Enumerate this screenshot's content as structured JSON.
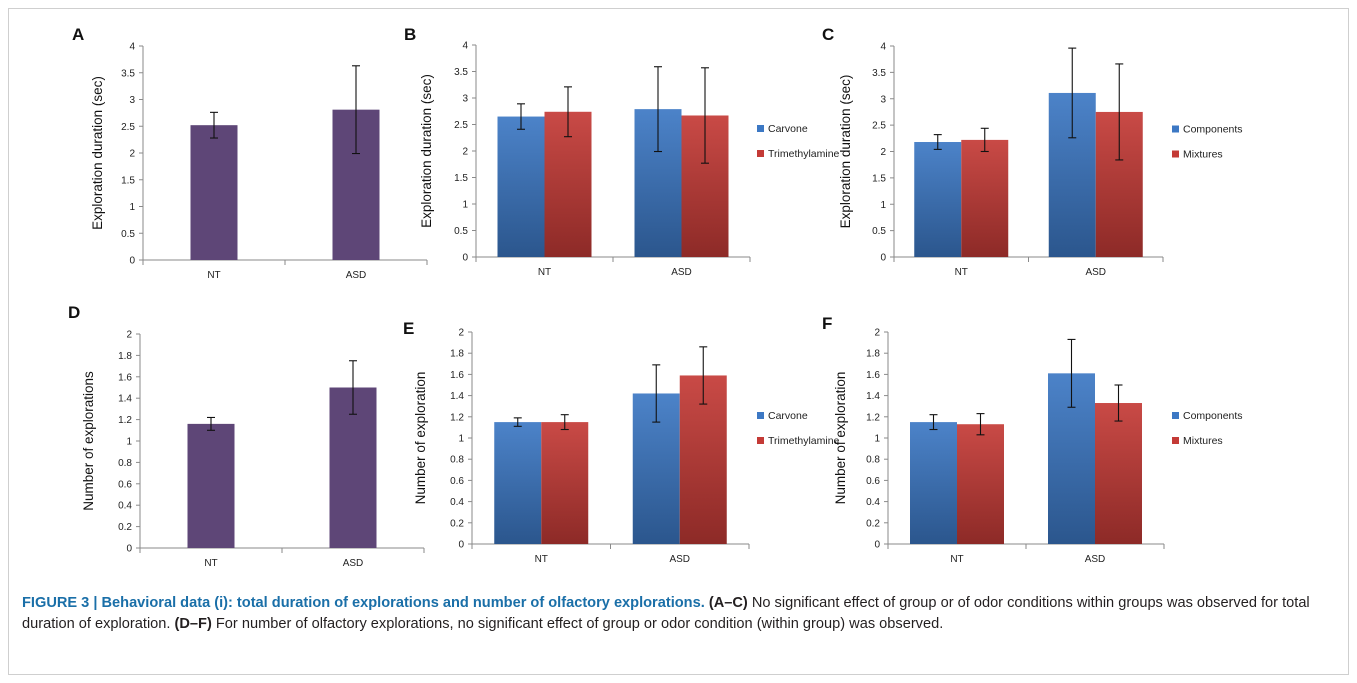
{
  "chart_data": [
    {
      "panel_label": "A",
      "type": "bar",
      "ylabel": "Exploration duration (sec)",
      "ylim": [
        0,
        4
      ],
      "ytick_step": 0.5,
      "categories": [
        "NT",
        "ASD"
      ],
      "series": [
        {
          "values": [
            2.52,
            2.81
          ],
          "errors": [
            0.24,
            0.82
          ],
          "color": "#5e4677"
        }
      ],
      "legend": []
    },
    {
      "panel_label": "B",
      "type": "bar",
      "ylabel": "Exploration duration (sec)",
      "ylim": [
        0,
        4
      ],
      "ytick_step": 0.5,
      "categories": [
        "NT",
        "ASD"
      ],
      "series": [
        {
          "name": "Carvone",
          "values": [
            2.65,
            2.79
          ],
          "errors": [
            0.24,
            0.8
          ],
          "color": "#3c78c4"
        },
        {
          "name": "Trimethylamine",
          "values": [
            2.74,
            2.67
          ],
          "errors": [
            0.47,
            0.9
          ],
          "color": "#c43a36"
        }
      ],
      "legend": [
        {
          "label": "Carvone",
          "color": "#3c78c4"
        },
        {
          "label": "Trimethylamine",
          "color": "#c43a36"
        }
      ]
    },
    {
      "panel_label": "C",
      "type": "bar",
      "ylabel": "Exploration duration (sec)",
      "ylim": [
        0,
        4
      ],
      "ytick_step": 0.5,
      "categories": [
        "NT",
        "ASD"
      ],
      "series": [
        {
          "name": "Components",
          "values": [
            2.18,
            3.11
          ],
          "errors": [
            0.14,
            0.85
          ],
          "color": "#3c78c4"
        },
        {
          "name": "Mixtures",
          "values": [
            2.22,
            2.75
          ],
          "errors": [
            0.22,
            0.91
          ],
          "color": "#c43a36"
        }
      ],
      "legend": [
        {
          "label": "Components",
          "color": "#3c78c4"
        },
        {
          "label": "Mixtures",
          "color": "#c43a36"
        }
      ]
    },
    {
      "panel_label": "D",
      "type": "bar",
      "ylabel": "Number of explorations",
      "ylim": [
        0,
        2
      ],
      "ytick_step": 0.2,
      "categories": [
        "NT",
        "ASD"
      ],
      "series": [
        {
          "values": [
            1.16,
            1.5
          ],
          "errors": [
            0.06,
            0.25
          ],
          "color": "#5e4677"
        }
      ],
      "legend": []
    },
    {
      "panel_label": "E",
      "type": "bar",
      "ylabel": "Number of exploration",
      "ylim": [
        0,
        2
      ],
      "ytick_step": 0.2,
      "categories": [
        "NT",
        "ASD"
      ],
      "series": [
        {
          "name": "Carvone",
          "values": [
            1.15,
            1.42
          ],
          "errors": [
            0.04,
            0.27
          ],
          "color": "#3c78c4"
        },
        {
          "name": "Trimethylamine",
          "values": [
            1.15,
            1.59
          ],
          "errors": [
            0.07,
            0.27
          ],
          "color": "#c43a36"
        }
      ],
      "legend": [
        {
          "label": "Carvone",
          "color": "#3c78c4"
        },
        {
          "label": "Trimethylamine",
          "color": "#c43a36"
        }
      ]
    },
    {
      "panel_label": "F",
      "type": "bar",
      "ylabel": "Number of exploration",
      "ylim": [
        0,
        2
      ],
      "ytick_step": 0.2,
      "categories": [
        "NT",
        "ASD"
      ],
      "series": [
        {
          "name": "Components",
          "values": [
            1.15,
            1.61
          ],
          "errors": [
            0.07,
            0.32
          ],
          "color": "#3c78c4"
        },
        {
          "name": "Mixtures",
          "values": [
            1.13,
            1.33
          ],
          "errors": [
            0.1,
            0.17
          ],
          "color": "#c43a36"
        }
      ],
      "legend": [
        {
          "label": "Components",
          "color": "#3c78c4"
        },
        {
          "label": "Mixtures",
          "color": "#c43a36"
        }
      ]
    }
  ],
  "caption": {
    "lead": "FIGURE 3 | Behavioral data (i): total duration of explorations and number of olfactory explorations.",
    "part1_label": "(A–C)",
    "part1_text": "No significant effect of group or of odor conditions within groups was observed for total duration of exploration.",
    "part2_label": "(D–F)",
    "part2_text": "For number of olfactory explorations, no significant effect of group or odor condition (within group) was observed."
  }
}
